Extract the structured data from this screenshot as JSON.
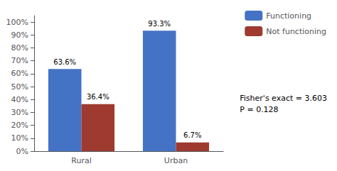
{
  "chart_data": {
    "type": "bar",
    "categories": [
      "Rural",
      "Urban"
    ],
    "series": [
      {
        "name": "Functioning",
        "color": "#4472C4",
        "values": [
          63.6,
          93.3
        ],
        "value_labels": [
          "63.6%",
          "93.3%"
        ]
      },
      {
        "name": "Not functioning",
        "color": "#9E3A2F",
        "values": [
          36.4,
          6.7
        ],
        "value_labels": [
          "36.4%",
          "6.7%"
        ]
      }
    ],
    "ylim": [
      0,
      105
    ],
    "yticks": [
      {
        "value": 0,
        "label": "0%"
      },
      {
        "value": 10,
        "label": "10%"
      },
      {
        "value": 20,
        "label": "20%"
      },
      {
        "value": 30,
        "label": "30%"
      },
      {
        "value": 40,
        "label": "40%"
      },
      {
        "value": 50,
        "label": "50%"
      },
      {
        "value": 60,
        "label": "60%"
      },
      {
        "value": 70,
        "label": "70%"
      },
      {
        "value": 80,
        "label": "80%"
      },
      {
        "value": 90,
        "label": "90%"
      },
      {
        "value": 100,
        "label": "100%"
      }
    ],
    "grid": false,
    "legend": "upper right",
    "data_labels": true,
    "annotations": [
      "Fisher's exact = 3.603",
      "P = 0.128"
    ]
  }
}
